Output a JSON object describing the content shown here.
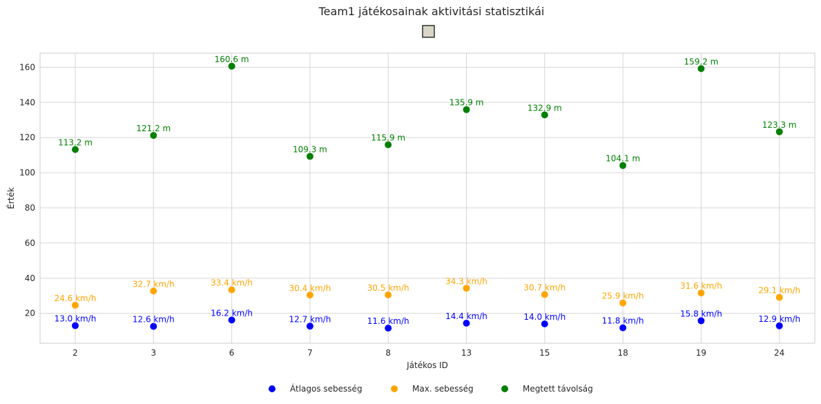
{
  "chart_data": {
    "type": "scatter",
    "title": "Team1 játékosainak aktivitási statisztikái",
    "xlabel": "Játékos ID",
    "ylabel": "Érték",
    "categories": [
      "2",
      "3",
      "6",
      "7",
      "8",
      "13",
      "15",
      "18",
      "19",
      "24"
    ],
    "ylim": [
      3,
      168
    ],
    "yticks": [
      20,
      40,
      60,
      80,
      100,
      120,
      140,
      160
    ],
    "grid": true,
    "legend_position": "bottom-center",
    "series": [
      {
        "name": "Átlagos sebesség",
        "color": "#0000ff",
        "values": [
          13.0,
          12.6,
          16.2,
          12.7,
          11.6,
          14.4,
          14.0,
          11.8,
          15.8,
          12.9
        ],
        "labels": [
          "13.0 km/h",
          "12.6 km/h",
          "16.2 km/h",
          "12.7 km/h",
          "11.6 km/h",
          "14.4 km/h",
          "14.0 km/h",
          "11.8 km/h",
          "15.8 km/h",
          "12.9 km/h"
        ]
      },
      {
        "name": "Max. sebesség",
        "color": "#ffa500",
        "values": [
          24.6,
          32.7,
          33.4,
          30.4,
          30.5,
          34.3,
          30.7,
          25.9,
          31.6,
          29.1
        ],
        "labels": [
          "24.6 km/h",
          "32.7 km/h",
          "33.4 km/h",
          "30.4 km/h",
          "30.5 km/h",
          "34.3 km/h",
          "30.7 km/h",
          "25.9 km/h",
          "31.6 km/h",
          "29.1 km/h"
        ]
      },
      {
        "name": "Megtett távolság",
        "color": "#008000",
        "values": [
          113.2,
          121.2,
          160.6,
          109.3,
          115.9,
          135.9,
          132.9,
          104.1,
          159.2,
          123.3
        ],
        "labels": [
          "113.2 m",
          "121.2 m",
          "160.6 m",
          "109.3 m",
          "115.9 m",
          "135.9 m",
          "132.9 m",
          "104.1 m",
          "159.2 m",
          "123.3 m"
        ]
      }
    ]
  }
}
